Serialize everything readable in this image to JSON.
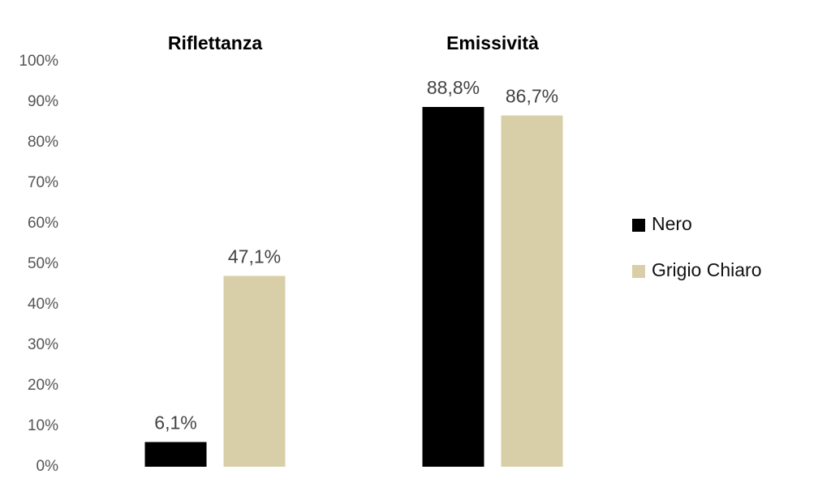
{
  "chart_data": {
    "type": "bar",
    "categories": [
      "Riflettanza",
      "Emissività"
    ],
    "series": [
      {
        "name": "Nero",
        "color": "#000000",
        "values": [
          6.1,
          88.8
        ],
        "value_labels": [
          "6,1%",
          "88,8%"
        ]
      },
      {
        "name": "Grigio Chiaro",
        "color": "#d8cfa8",
        "values": [
          47.1,
          86.7
        ],
        "value_labels": [
          "47,1%",
          "86,7%"
        ]
      }
    ],
    "ylim": [
      0,
      100
    ],
    "yticks": [
      {
        "value": 0,
        "label": "0%"
      },
      {
        "value": 10,
        "label": "10%"
      },
      {
        "value": 20,
        "label": "20%"
      },
      {
        "value": 30,
        "label": "30%"
      },
      {
        "value": 40,
        "label": "40%"
      },
      {
        "value": 50,
        "label": "50%"
      },
      {
        "value": 60,
        "label": "60%"
      },
      {
        "value": 70,
        "label": "70%"
      },
      {
        "value": 80,
        "label": "80%"
      },
      {
        "value": 90,
        "label": "90%"
      },
      {
        "value": 100,
        "label": "100%"
      }
    ],
    "grid": false,
    "legend": "right"
  }
}
